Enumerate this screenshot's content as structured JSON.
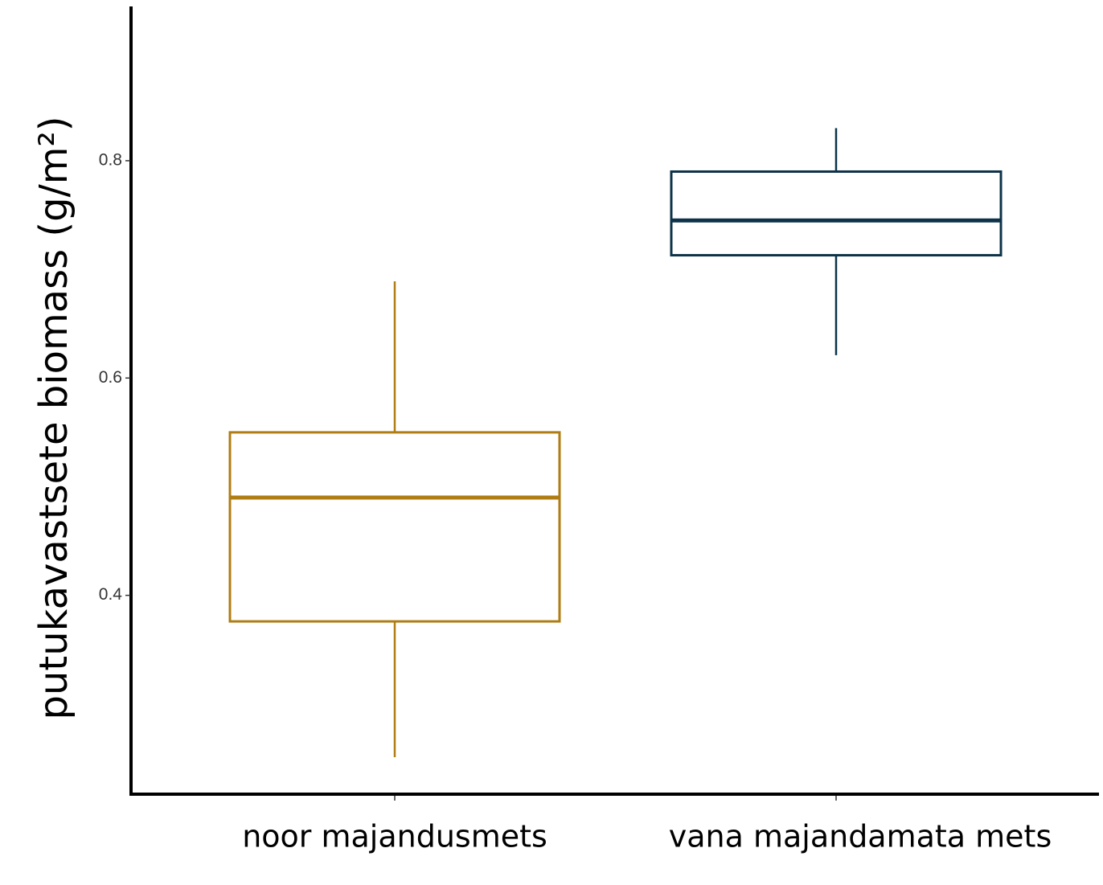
{
  "chart_data": {
    "type": "box",
    "y_label": "putukavastsete biomass (g/m²)",
    "categories": [
      "noor majandusmets",
      "vana majandamata mets"
    ],
    "boxes": [
      {
        "color": "#b07d14",
        "whisker_low": 0.251,
        "q1": 0.376,
        "median": 0.49,
        "q3": 0.55,
        "whisker_high": 0.689
      },
      {
        "color": "#0d3349",
        "whisker_low": 0.621,
        "q1": 0.713,
        "median": 0.745,
        "q3": 0.79,
        "whisker_high": 0.83
      }
    ],
    "ylim": [
      0.217,
      0.942
    ],
    "yticks": [
      0.4,
      0.6,
      0.8
    ]
  }
}
